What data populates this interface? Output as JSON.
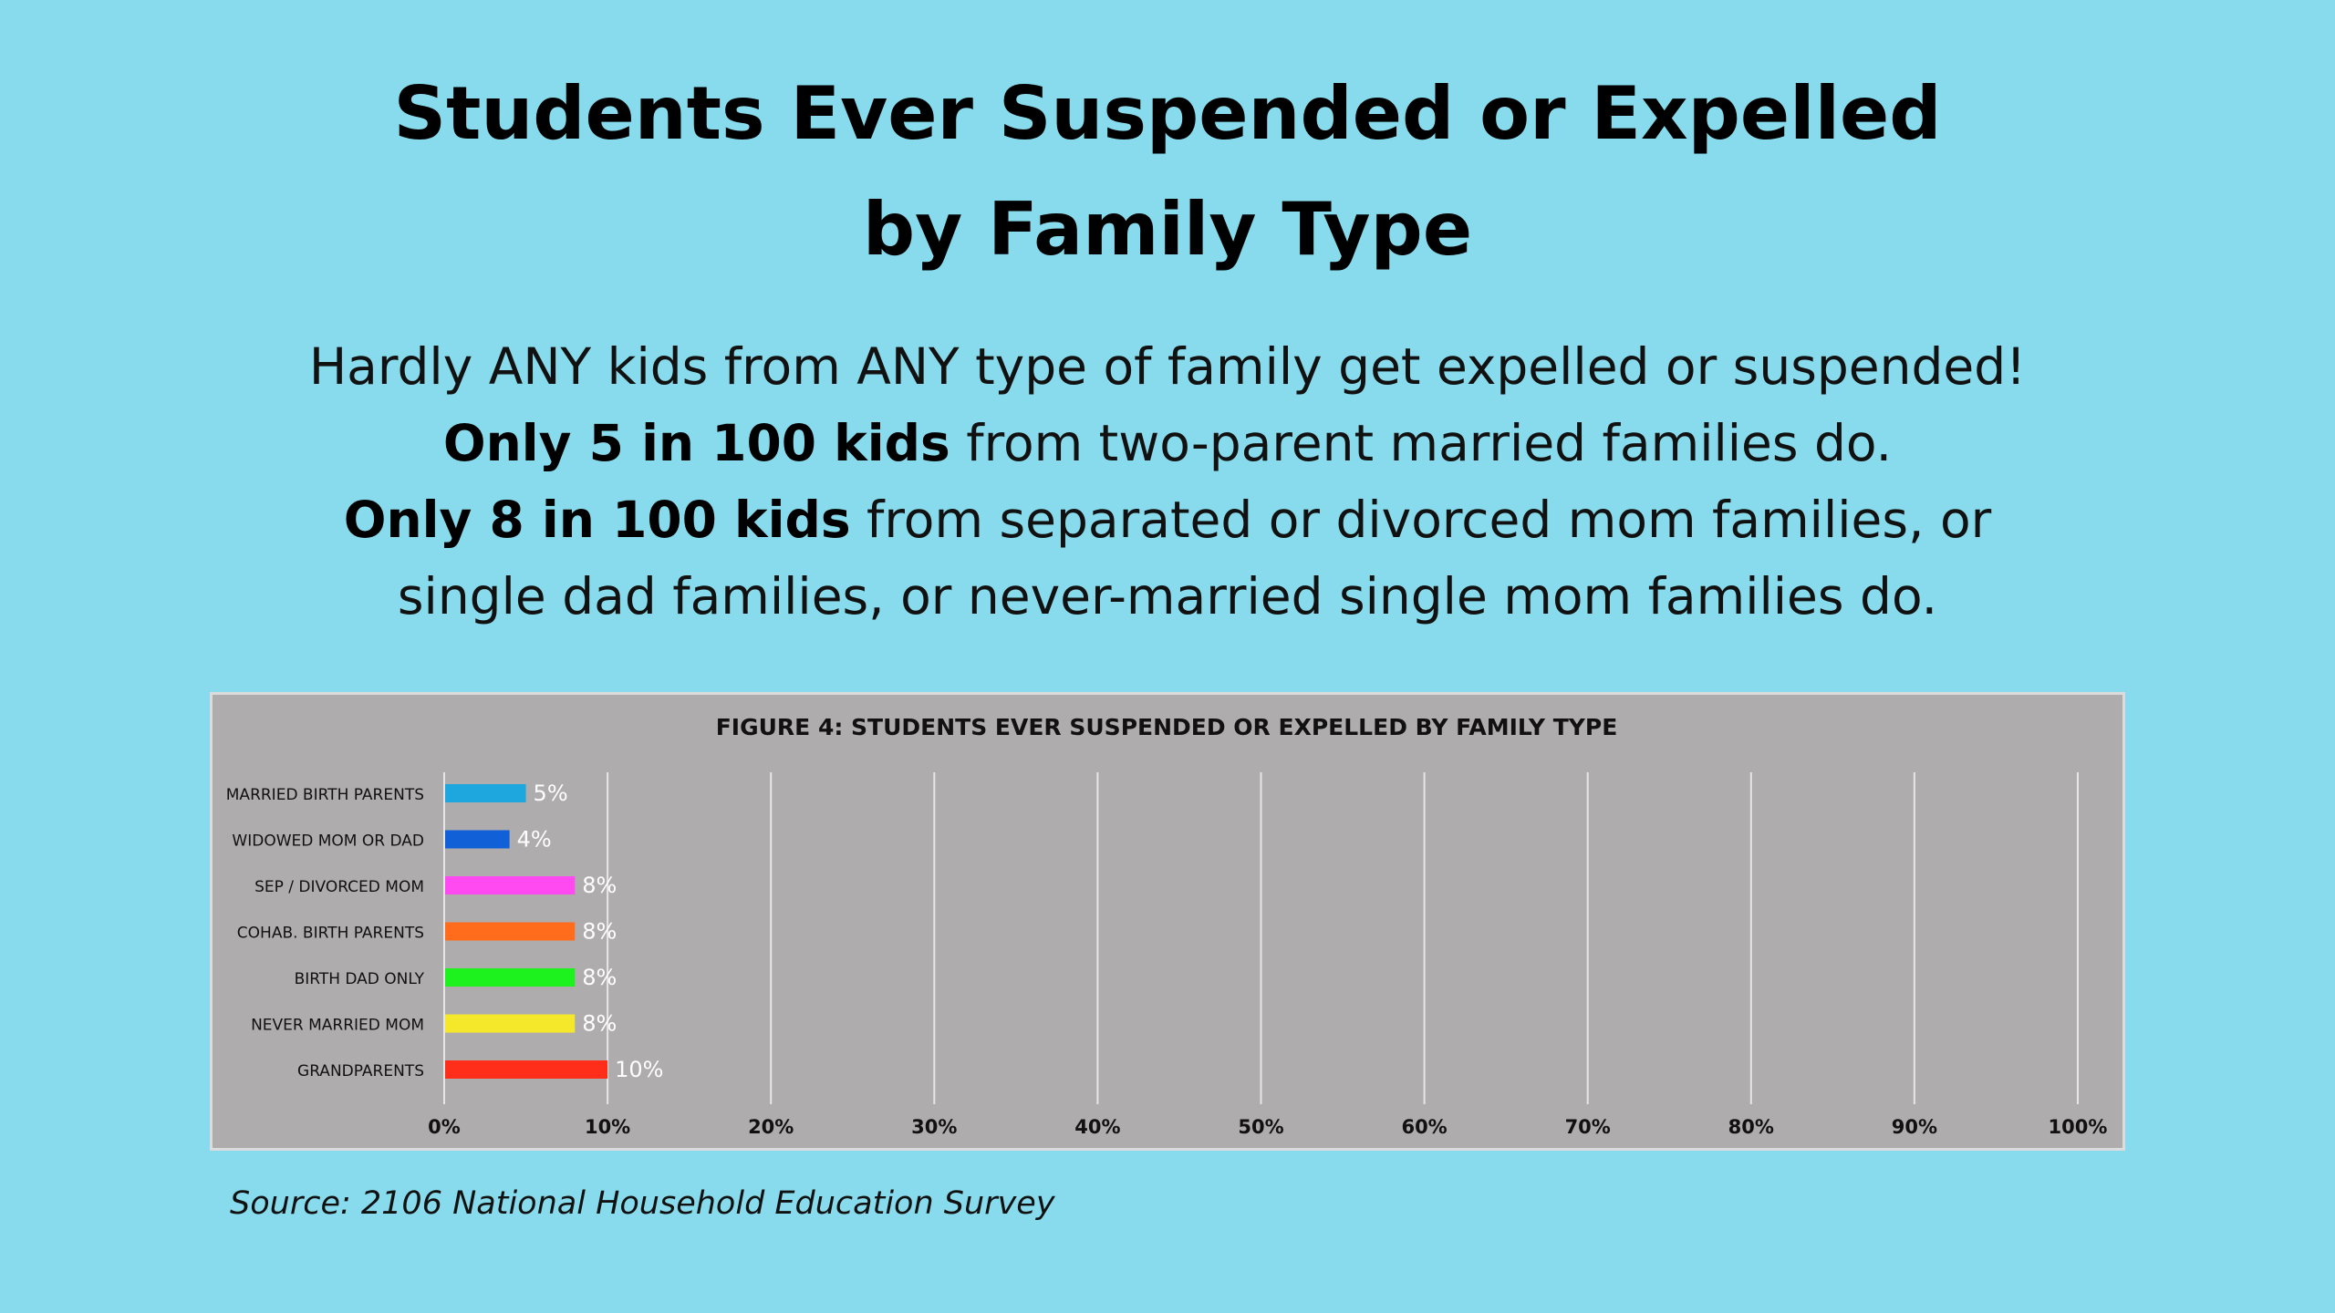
{
  "page": {
    "title_line1": "Students Ever Suspended or Expelled",
    "title_line2": "by Family Type",
    "subtitle": {
      "line1": "Hardly ANY kids from ANY type of family get expelled or suspended!",
      "line2_bold": "Only 5 in 100 kids",
      "line2_rest": " from two-parent married families do.",
      "line3_bold": "Only 8 in 100 kids",
      "line3_rest": " from separated or divorced mom families, or",
      "line4": "single dad families, or never-married single mom families do."
    },
    "source": "Source: 2106 National Household Education Survey",
    "colors": {
      "background": "#88dbec",
      "panel": "#afacad"
    }
  },
  "chart_data": {
    "type": "bar",
    "orientation": "horizontal",
    "title": "FIGURE 4: STUDENTS EVER SUSPENDED OR EXPELLED BY FAMILY TYPE",
    "categories": [
      "MARRIED BIRTH PARENTS",
      "WIDOWED MOM OR DAD",
      "SEP / DIVORCED MOM",
      "COHAB. BIRTH PARENTS",
      "BIRTH DAD ONLY",
      "NEVER MARRIED MOM",
      "GRANDPARENTS"
    ],
    "values": [
      5,
      4,
      8,
      8,
      8,
      8,
      10
    ],
    "value_labels": [
      "5%",
      "4%",
      "8%",
      "8%",
      "8%",
      "8%",
      "10%"
    ],
    "colors": [
      "#1ea6de",
      "#1160d8",
      "#ff4af2",
      "#ff6d1c",
      "#1ef21e",
      "#f5e82a",
      "#ff2e1a"
    ],
    "xlim": [
      0,
      100
    ],
    "x_ticks": [
      0,
      10,
      20,
      30,
      40,
      50,
      60,
      70,
      80,
      90,
      100
    ],
    "x_tick_labels": [
      "0%",
      "10%",
      "20%",
      "30%",
      "40%",
      "50%",
      "60%",
      "70%",
      "80%",
      "90%",
      "100%"
    ],
    "grid": "vertical",
    "xlabel": "",
    "ylabel": ""
  }
}
